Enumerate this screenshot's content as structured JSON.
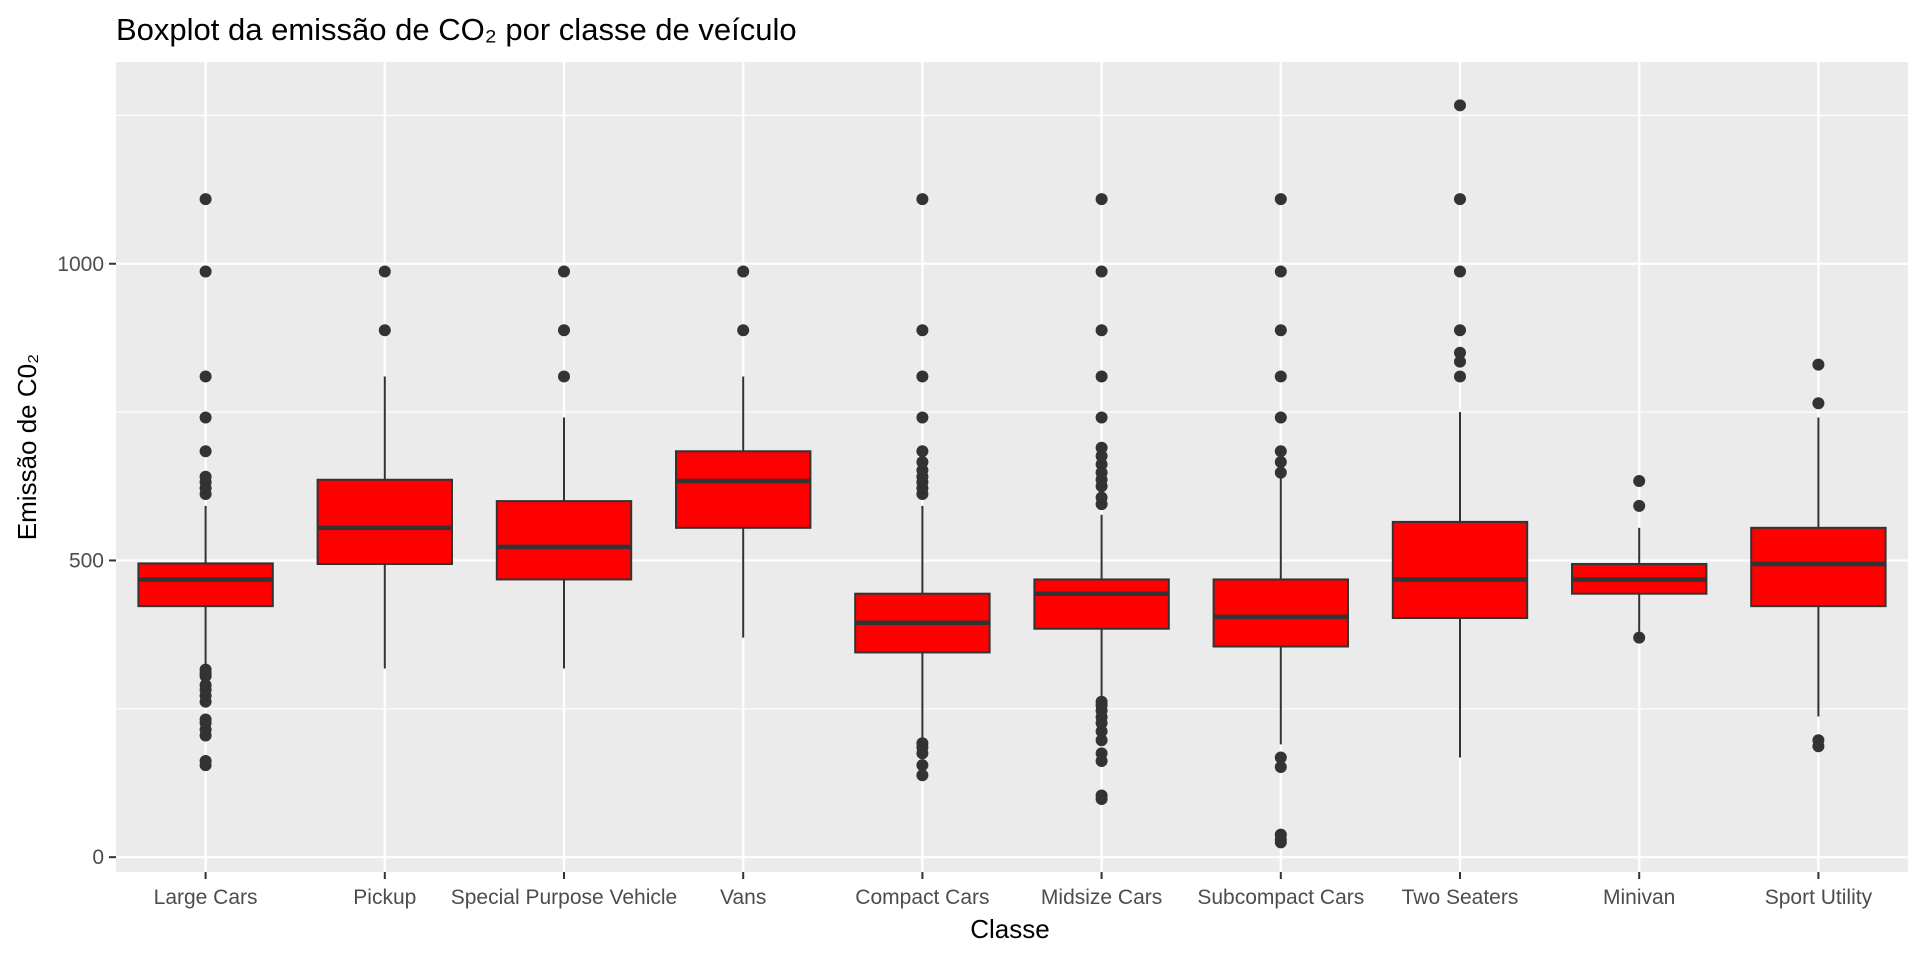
{
  "chart_data": {
    "type": "boxplot",
    "title": "Boxplot da emissão de CO₂ por classe de veículo",
    "xlabel": "Classe",
    "ylabel": "Emissão de C0₂",
    "ylim": [
      -25,
      1340
    ],
    "yticks": [
      0,
      500,
      1000
    ],
    "grid": true,
    "legend": "none",
    "colors": {
      "panel": "#ebebeb",
      "grid": "#ffffff",
      "box_fill": "#ff0000",
      "box_line": "#333333",
      "outlier": "#333333"
    },
    "categories": [
      "Large Cars",
      "Pickup",
      "Special Purpose Vehicle",
      "Vans",
      "Compact Cars",
      "Midsize Cars",
      "Subcompact Cars",
      "Two Seaters",
      "Minivan",
      "Sport Utility"
    ],
    "boxes": [
      {
        "name": "Large Cars",
        "lower_whisker": 320,
        "q1": 423,
        "median": 468,
        "q3": 495,
        "upper_whisker": 592,
        "outliers": [
          155,
          162,
          205,
          215,
          226,
          232,
          262,
          272,
          282,
          290,
          305,
          310,
          316,
          612,
          622,
          632,
          641,
          684,
          741,
          810,
          987,
          1109
        ]
      },
      {
        "name": "Pickup",
        "lower_whisker": 318,
        "q1": 494,
        "median": 555,
        "q3": 636,
        "upper_whisker": 810,
        "outliers": [
          888,
          987
        ]
      },
      {
        "name": "Special Purpose Vehicle",
        "lower_whisker": 318,
        "q1": 468,
        "median": 523,
        "q3": 600,
        "upper_whisker": 741,
        "outliers": [
          810,
          888,
          987
        ]
      },
      {
        "name": "Vans",
        "lower_whisker": 370,
        "q1": 555,
        "median": 634,
        "q3": 684,
        "upper_whisker": 810,
        "outliers": [
          888,
          987
        ]
      },
      {
        "name": "Compact Cars",
        "lower_whisker": 197,
        "q1": 345,
        "median": 395,
        "q3": 444,
        "upper_whisker": 592,
        "outliers": [
          138,
          155,
          175,
          185,
          192,
          612,
          622,
          632,
          641,
          652,
          666,
          684,
          741,
          810,
          888,
          1109
        ]
      },
      {
        "name": "Midsize Cars",
        "lower_whisker": 270,
        "q1": 385,
        "median": 444,
        "q3": 468,
        "upper_whisker": 577,
        "outliers": [
          98,
          104,
          162,
          175,
          197,
          212,
          226,
          236,
          247,
          256,
          262,
          595,
          606,
          625,
          636,
          648,
          662,
          676,
          690,
          741,
          810,
          888,
          987,
          1109
        ]
      },
      {
        "name": "Subcompact Cars",
        "lower_whisker": 190,
        "q1": 355,
        "median": 405,
        "q3": 468,
        "upper_whisker": 642,
        "outliers": [
          25,
          30,
          38,
          152,
          168,
          648,
          666,
          684,
          741,
          810,
          888,
          987,
          1109
        ]
      },
      {
        "name": "Two Seaters",
        "lower_whisker": 168,
        "q1": 403,
        "median": 468,
        "q3": 565,
        "upper_whisker": 750,
        "outliers": [
          810,
          835,
          850,
          888,
          987,
          1109,
          1267
        ]
      },
      {
        "name": "Minivan",
        "lower_whisker": 370,
        "q1": 444,
        "median": 468,
        "q3": 494,
        "upper_whisker": 555,
        "outliers": [
          370,
          592,
          634
        ]
      },
      {
        "name": "Sport Utility",
        "lower_whisker": 237,
        "q1": 423,
        "median": 494,
        "q3": 555,
        "upper_whisker": 741,
        "outliers": [
          187,
          197,
          765,
          830
        ]
      }
    ]
  }
}
